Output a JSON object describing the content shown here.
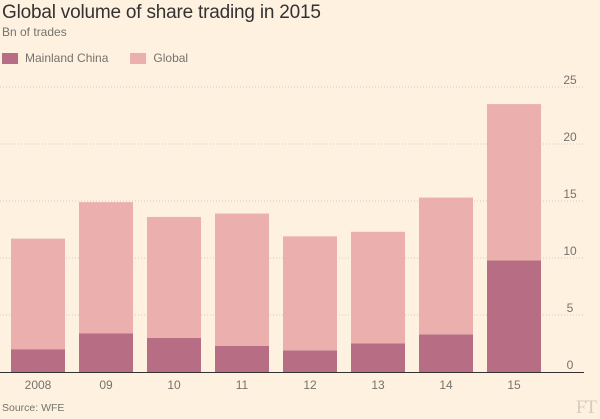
{
  "chart_data": {
    "type": "bar",
    "stacked": true,
    "title": "Global volume of share trading in 2015",
    "subtitle": "Bn of trades",
    "categories": [
      "2008",
      "09",
      "10",
      "11",
      "12",
      "13",
      "14",
      "15"
    ],
    "series": [
      {
        "name": "Mainland China",
        "color": "#b76e84",
        "values": [
          2.0,
          3.4,
          3.0,
          2.3,
          1.9,
          2.5,
          3.3,
          9.8
        ]
      },
      {
        "name": "Global",
        "color": "#ebb0ae",
        "values": [
          9.7,
          11.5,
          10.6,
          11.6,
          10.0,
          9.8,
          12.0,
          13.7
        ]
      }
    ],
    "ylim": [
      0,
      25
    ],
    "yticks": [
      0,
      5,
      10,
      15,
      20,
      25
    ],
    "y_axis_side": "right",
    "grid": "horizontal dotted",
    "legend_position": "top-left",
    "source": "Source: WFE"
  },
  "logo_text": "FT"
}
